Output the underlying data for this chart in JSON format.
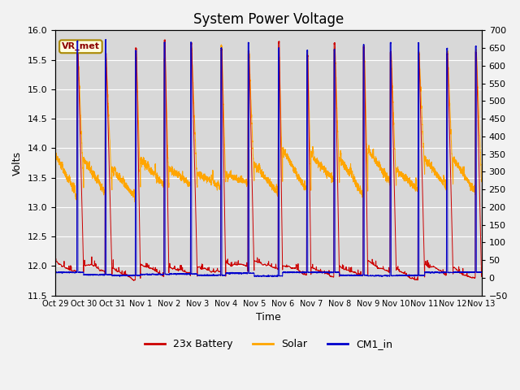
{
  "title": "System Power Voltage",
  "xlabel": "Time",
  "ylabel_left": "Volts",
  "ylim_left": [
    11.5,
    16.0
  ],
  "ylim_right": [
    -50,
    700
  ],
  "yticks_left": [
    11.5,
    12.0,
    12.5,
    13.0,
    13.5,
    14.0,
    14.5,
    15.0,
    15.5,
    16.0
  ],
  "yticks_right": [
    -50,
    0,
    50,
    100,
    150,
    200,
    250,
    300,
    350,
    400,
    450,
    500,
    550,
    600,
    650,
    700
  ],
  "x_labels": [
    "Oct 29",
    "Oct 30",
    "Oct 31",
    "Nov 1",
    "Nov 2",
    "Nov 3",
    "Nov 4",
    "Nov 5",
    "Nov 6",
    "Nov 7",
    "Nov 8",
    "Nov 9",
    "Nov 10",
    "Nov 11",
    "Nov 12",
    "Nov 13"
  ],
  "num_days": 15,
  "battery_color": "#cc0000",
  "solar_color": "#ffa500",
  "cm1_color": "#0000cc",
  "legend_labels": [
    "23x Battery",
    "Solar",
    "CM1_in"
  ],
  "vr_met_label": "VR_met",
  "background_color": "#d8d8d8",
  "grid_color": "#ffffff",
  "title_fontsize": 12,
  "label_fontsize": 9,
  "tick_fontsize": 8
}
